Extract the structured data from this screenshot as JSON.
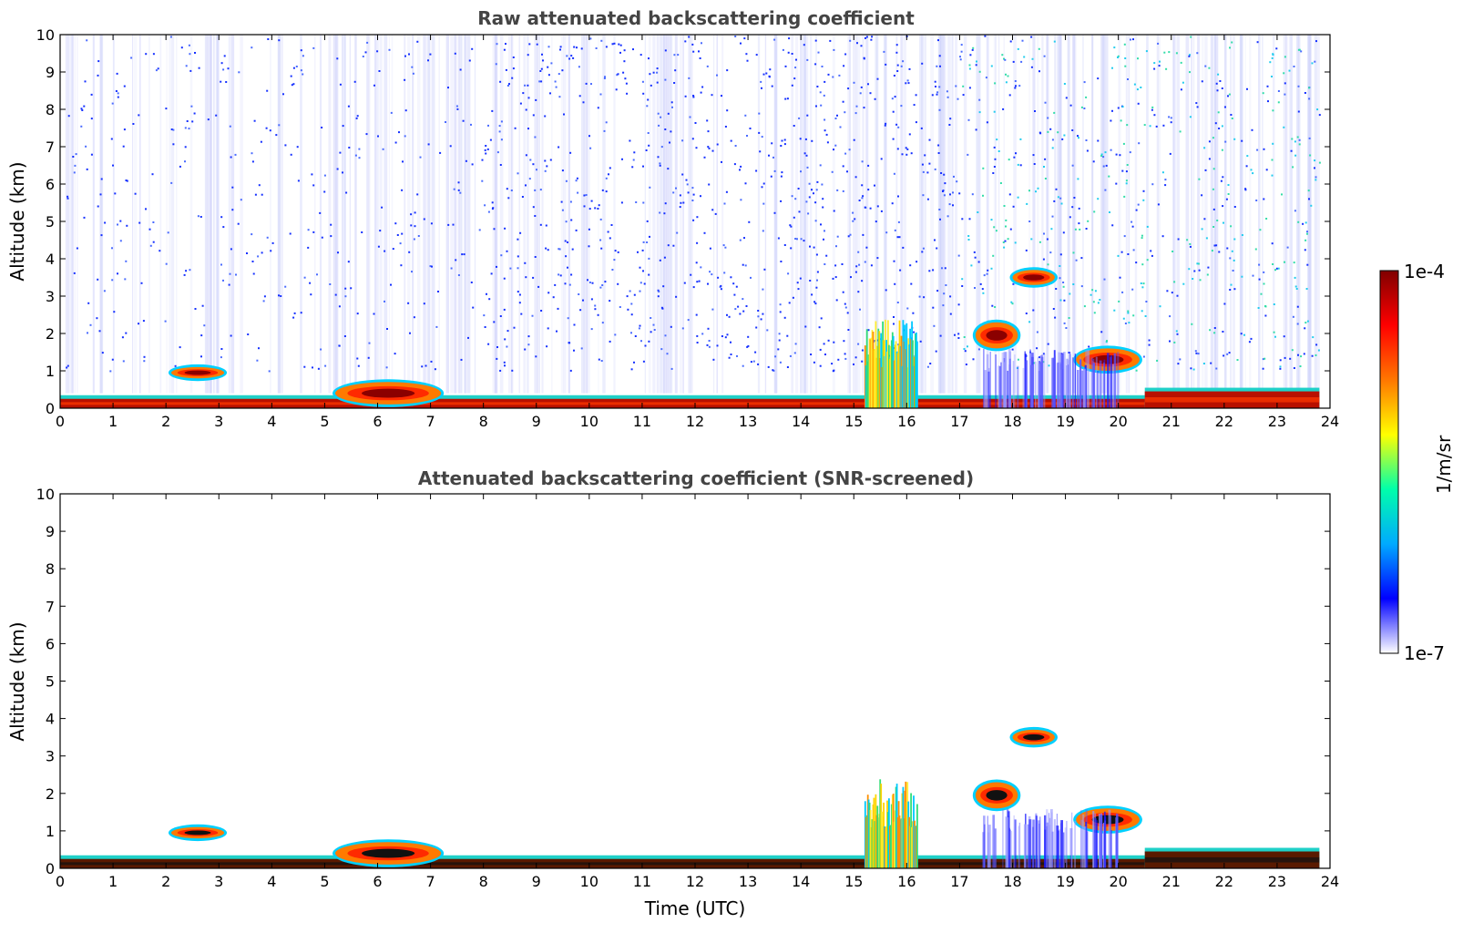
{
  "chart_data": [
    {
      "type": "heatmap",
      "title": "Raw attenuated backscattering coefficient",
      "xlabel": "",
      "ylabel": "Altitude (km)",
      "xlim": [
        0,
        24
      ],
      "ylim": [
        0,
        10
      ],
      "xticks": [
        0,
        1,
        2,
        3,
        4,
        5,
        6,
        7,
        8,
        9,
        10,
        11,
        12,
        13,
        14,
        15,
        16,
        17,
        18,
        19,
        20,
        21,
        22,
        23,
        24
      ],
      "yticks": [
        0,
        1,
        2,
        3,
        4,
        5,
        6,
        7,
        8,
        9,
        10
      ],
      "noise_above_boundary_layer": true,
      "features": [
        {
          "name": "boundary layer",
          "x": [
            0,
            23.8
          ],
          "y": [
            0,
            0.25
          ],
          "level": "high"
        },
        {
          "name": "aerosol layer",
          "x": [
            5.2,
            7.2
          ],
          "y": [
            0.1,
            0.7
          ],
          "level": "high"
        },
        {
          "name": "cloud",
          "x": [
            2.1,
            3.1
          ],
          "y": [
            0.8,
            1.1
          ],
          "level": "high"
        },
        {
          "name": "convective plume",
          "x": [
            15.2,
            16.2
          ],
          "y": [
            0,
            2.4
          ],
          "level": "medium-high"
        },
        {
          "name": "cloud",
          "x": [
            17.3,
            18.1
          ],
          "y": [
            1.6,
            2.3
          ],
          "level": "high"
        },
        {
          "name": "elevated cloud",
          "x": [
            18.0,
            18.8
          ],
          "y": [
            3.3,
            3.7
          ],
          "level": "high"
        },
        {
          "name": "cloud",
          "x": [
            19.2,
            20.4
          ],
          "y": [
            1.0,
            1.6
          ],
          "level": "high"
        },
        {
          "name": "rain streaks",
          "x": [
            17.4,
            20.0
          ],
          "y": [
            0,
            1.6
          ],
          "level": "low"
        },
        {
          "name": "nighttime boundary layer",
          "x": [
            20.5,
            23.8
          ],
          "y": [
            0,
            0.45
          ],
          "level": "high"
        }
      ]
    },
    {
      "type": "heatmap",
      "title": "Attenuated backscattering coefficient (SNR-screened)",
      "xlabel": "Time (UTC)",
      "ylabel": "Altitude (km)",
      "xlim": [
        0,
        24
      ],
      "ylim": [
        0,
        10
      ],
      "xticks": [
        0,
        1,
        2,
        3,
        4,
        5,
        6,
        7,
        8,
        9,
        10,
        11,
        12,
        13,
        14,
        15,
        16,
        17,
        18,
        19,
        20,
        21,
        22,
        23,
        24
      ],
      "yticks": [
        0,
        1,
        2,
        3,
        4,
        5,
        6,
        7,
        8,
        9,
        10
      ],
      "noise_above_boundary_layer": false,
      "features": [
        {
          "name": "boundary layer",
          "x": [
            0,
            23.8
          ],
          "y": [
            0,
            0.25
          ],
          "level": "high"
        },
        {
          "name": "aerosol layer",
          "x": [
            5.2,
            7.2
          ],
          "y": [
            0.1,
            0.7
          ],
          "level": "high"
        },
        {
          "name": "cloud",
          "x": [
            2.1,
            3.1
          ],
          "y": [
            0.8,
            1.1
          ],
          "level": "high"
        },
        {
          "name": "convective plume",
          "x": [
            15.2,
            16.2
          ],
          "y": [
            0,
            2.4
          ],
          "level": "medium-high"
        },
        {
          "name": "cloud",
          "x": [
            17.3,
            18.1
          ],
          "y": [
            1.6,
            2.3
          ],
          "level": "high"
        },
        {
          "name": "elevated cloud",
          "x": [
            18.0,
            18.8
          ],
          "y": [
            3.3,
            3.7
          ],
          "level": "high"
        },
        {
          "name": "cloud",
          "x": [
            19.2,
            20.4
          ],
          "y": [
            1.0,
            1.6
          ],
          "level": "high"
        },
        {
          "name": "rain streaks",
          "x": [
            17.4,
            20.0
          ],
          "y": [
            0,
            1.6
          ],
          "level": "low"
        },
        {
          "name": "nighttime boundary layer",
          "x": [
            20.5,
            23.8
          ],
          "y": [
            0,
            0.45
          ],
          "level": "high"
        }
      ]
    }
  ],
  "colorbar": {
    "min_label": "1e-7",
    "max_label": "1e-4",
    "unit": "1/m/sr",
    "scale": "log",
    "colormap": "jet",
    "colors": [
      "#ffffff",
      "#0000ff",
      "#00aaff",
      "#00ffaa",
      "#ffff00",
      "#ff7700",
      "#ff0000",
      "#800000"
    ]
  }
}
